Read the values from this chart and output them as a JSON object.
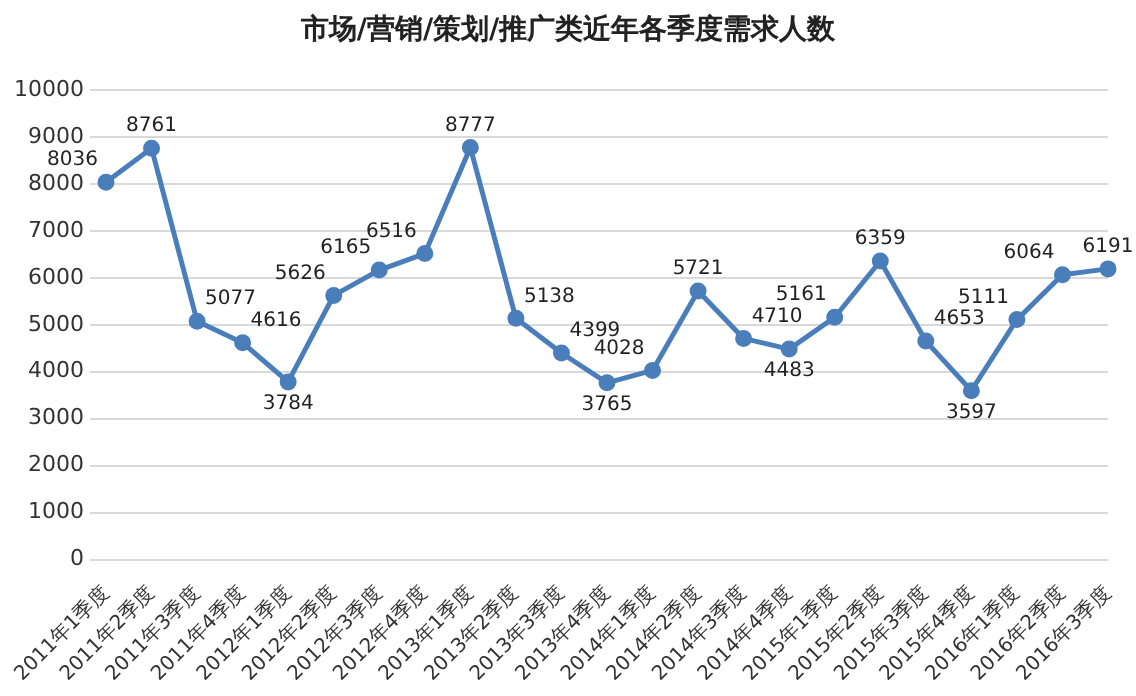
{
  "chart_data": {
    "type": "line",
    "title": "市场/营销/策划/推广类近年各季度需求人数",
    "categories": [
      "2011年1季度",
      "2011年2季度",
      "2011年3季度",
      "2011年4季度",
      "2012年1季度",
      "2012年2季度",
      "2012年3季度",
      "2012年4季度",
      "2013年1季度",
      "2013年2季度",
      "2013年3季度",
      "2013年4季度",
      "2014年1季度",
      "2014年2季度",
      "2014年3季度",
      "2014年4季度",
      "2015年1季度",
      "2015年2季度",
      "2015年3季度",
      "2015年4季度",
      "2016年1季度",
      "2016年2季度",
      "2016年3季度"
    ],
    "series": [
      {
        "color": "#4a7ebb",
        "values": [
          8036,
          8761,
          5077,
          4616,
          3784,
          5626,
          6165,
          6516,
          8777,
          5138,
          4399,
          3765,
          4028,
          5721,
          4710,
          4483,
          5161,
          6359,
          4653,
          3597,
          5111,
          6064,
          6191
        ]
      }
    ],
    "ylim": [
      0,
      10000
    ],
    "yticks": [
      0,
      1000,
      2000,
      3000,
      4000,
      5000,
      6000,
      7000,
      8000,
      9000,
      10000
    ],
    "grid": "y",
    "legend": false,
    "marker": "circle",
    "line_style": "solid",
    "data_labels": true
  }
}
